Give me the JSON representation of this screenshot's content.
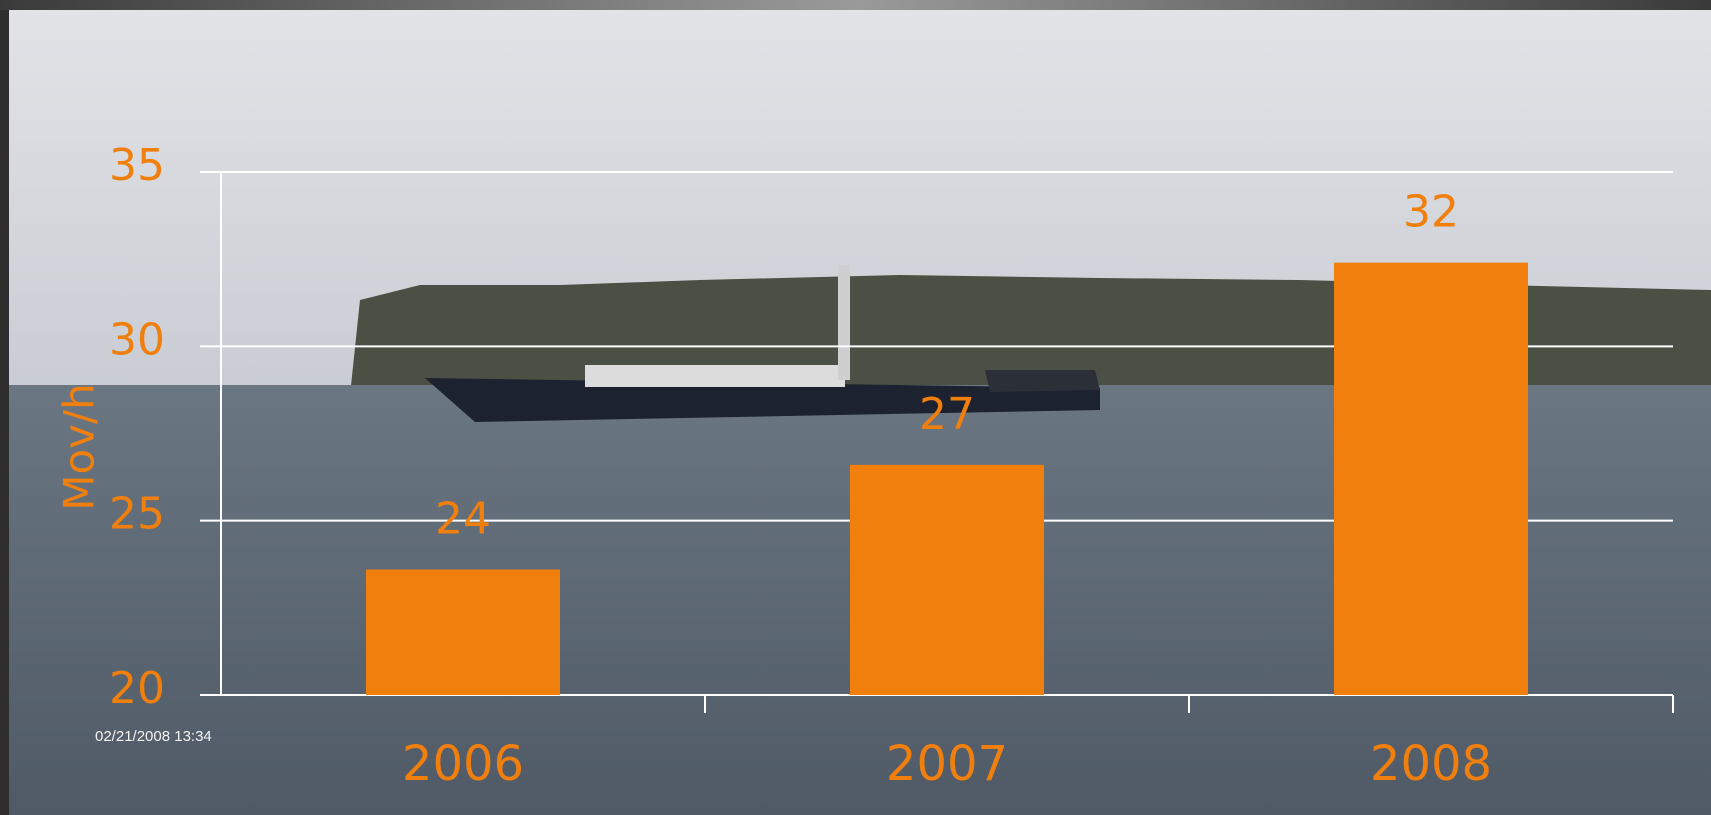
{
  "chart_data": {
    "type": "bar",
    "y_label": "Mov/h",
    "categories": [
      "2006",
      "2007",
      "2008"
    ],
    "values": [
      23.6,
      26.6,
      32.4
    ],
    "value_labels": [
      "24",
      "27",
      "32"
    ],
    "color": "#f07f0e",
    "ylim": [
      20,
      35
    ],
    "yticks": [
      20,
      25,
      30,
      35
    ],
    "grid": true,
    "annotations": [
      "02/21/2008 13:34"
    ]
  }
}
